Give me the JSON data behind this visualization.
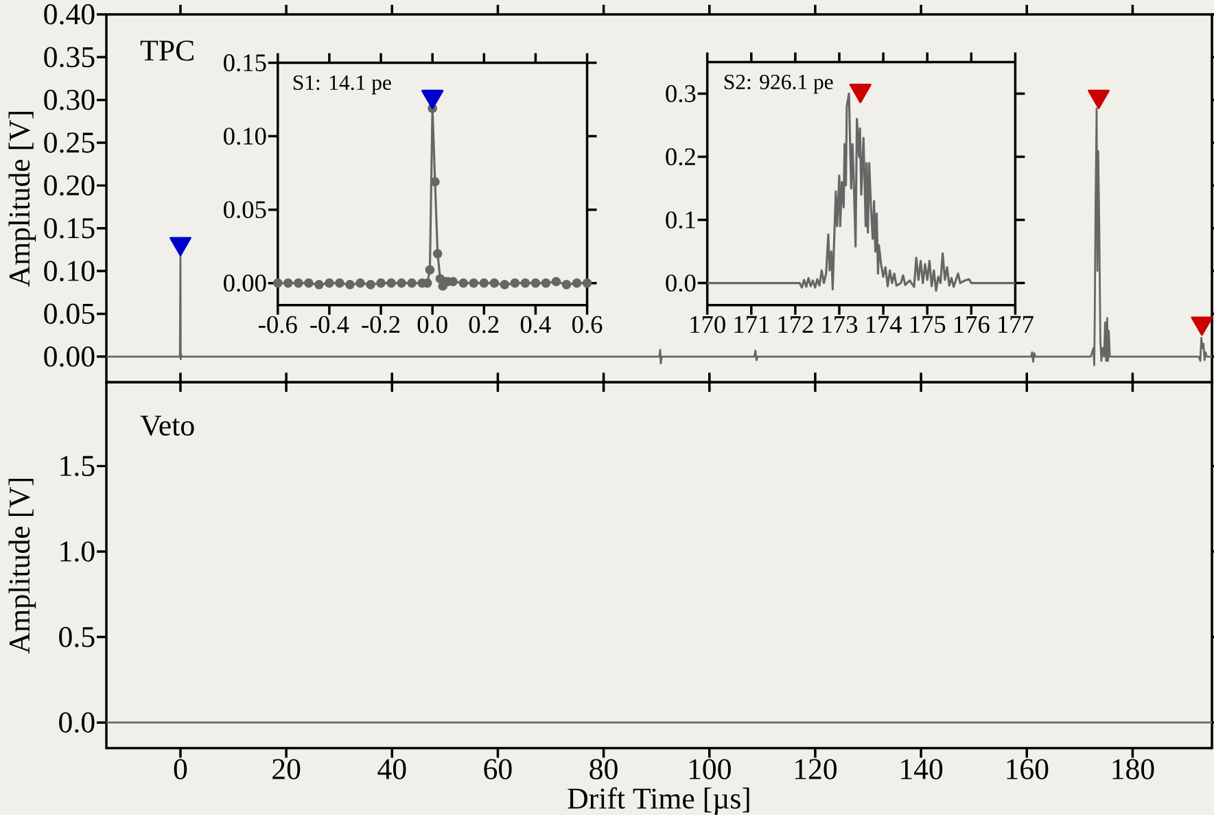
{
  "chart_data": [
    {
      "type": "line",
      "ylabel": "Amplitude [V]",
      "annotations": [
        "TPC"
      ],
      "xlim": [
        -14,
        195
      ],
      "ylim": [
        -0.03,
        0.4
      ],
      "xticks": [
        0,
        20,
        40,
        60,
        80,
        100,
        120,
        140,
        160,
        180
      ],
      "yticks": [
        {
          "value": 0,
          "label": "0.00"
        },
        {
          "value": 0.05,
          "label": "0.05"
        },
        {
          "value": 0.1,
          "label": "0.10"
        },
        {
          "value": 0.15,
          "label": "0.15"
        },
        {
          "value": 0.2,
          "label": "0.20"
        },
        {
          "value": 0.25,
          "label": "0.25"
        },
        {
          "value": 0.3,
          "label": "0.30"
        },
        {
          "value": 0.35,
          "label": "0.35"
        },
        {
          "value": 0.4,
          "label": "0.40"
        }
      ],
      "tick_labels": "y",
      "series": [
        {
          "color": "#666666",
          "x": [
            -14,
            -0.1,
            0,
            0.05,
            0.1,
            0.2,
            90.5,
            90.7,
            90.8,
            91.0,
            108.5,
            108.7,
            108.9,
            109.1,
            160.8,
            161,
            161.2,
            161.4,
            161.6,
            172.1,
            172.6,
            172.75,
            172.85,
            173.0,
            173.2,
            173.35,
            173.5,
            173.7,
            173.9,
            174.1,
            174.3,
            174.6,
            174.8,
            175.0,
            175.2,
            175.35,
            175.5,
            175.7,
            176,
            192.5,
            192.8,
            193.0,
            193.2,
            193.4,
            193.6,
            193.8,
            194,
            195
          ],
          "values": [
            0,
            0,
            0.119,
            -0.003,
            0.003,
            0,
            0,
            0.008,
            -0.008,
            0,
            0,
            0.007,
            -0.004,
            0,
            0,
            0.005,
            -0.006,
            0.004,
            0,
            0,
            0.01,
            -0.01,
            0.05,
            0.18,
            0.29,
            0.1,
            0.24,
            0.15,
            0.02,
            -0.005,
            0.01,
            0,
            0.04,
            -0.005,
            0.045,
            -0.005,
            0.03,
            0,
            0,
            0,
            -0.005,
            0.022,
            0.01,
            0.015,
            -0.004,
            0.005,
            0,
            0
          ]
        },
        {
          "type": "scatter",
          "marker": "triangle",
          "color": "#0000cc",
          "x": [
            0
          ],
          "values": [
            0.132
          ]
        },
        {
          "type": "scatter",
          "marker": "triangle",
          "color": "#cc0000",
          "x": [
            173.6,
            193.1
          ],
          "values": [
            0.304,
            0.039
          ]
        }
      ]
    },
    {
      "type": "line",
      "xlabel": "Drift Time [µs]",
      "ylabel": "Amplitude [V]",
      "annotations": [
        "Veto"
      ],
      "xlim": [
        -14,
        195
      ],
      "ylim": [
        -0.15,
        1.99
      ],
      "xticks": [
        0,
        20,
        40,
        60,
        80,
        100,
        120,
        140,
        160,
        180
      ],
      "yticks": [
        {
          "value": 0,
          "label": "0.0"
        },
        {
          "value": 0.5,
          "label": "0.5"
        },
        {
          "value": 1,
          "label": "1.0"
        },
        {
          "value": 1.5,
          "label": "1.5"
        }
      ],
      "series": [
        {
          "color": "#666666",
          "x": [
            -14,
            195
          ],
          "values": [
            0,
            0
          ]
        }
      ]
    },
    {
      "type": "line",
      "annotations": [
        "S1: 14.1 pe"
      ],
      "xlim": [
        -0.6,
        0.6
      ],
      "ylim": [
        -0.015,
        0.15
      ],
      "xticks": [
        -0.6,
        -0.4,
        -0.2,
        {
          "value": 0,
          "label": "0.0"
        },
        0.2,
        0.4,
        0.6
      ],
      "yticks": [
        {
          "value": 0,
          "label": "0.00"
        },
        {
          "value": 0.05,
          "label": "0.05"
        },
        {
          "value": 0.1,
          "label": "0.10"
        },
        {
          "value": 0.15,
          "label": "0.15"
        }
      ],
      "series": [
        {
          "color": "#666666",
          "marker": "circle",
          "x": [
            -0.6,
            -0.56,
            -0.52,
            -0.48,
            -0.44,
            -0.4,
            -0.36,
            -0.32,
            -0.28,
            -0.24,
            -0.2,
            -0.16,
            -0.12,
            -0.08,
            -0.04,
            -0.02,
            -0.01,
            0,
            0.01,
            0.02,
            0.03,
            0.04,
            0.05,
            0.06,
            0.08,
            0.12,
            0.16,
            0.2,
            0.24,
            0.28,
            0.32,
            0.36,
            0.4,
            0.44,
            0.48,
            0.52,
            0.56,
            0.6
          ],
          "values": [
            0,
            0,
            0,
            0,
            -0.001,
            0,
            0,
            -0.001,
            0,
            -0.001,
            0,
            0,
            0,
            0,
            0,
            0,
            0.009,
            0.119,
            0.069,
            0.02,
            0.003,
            -0.002,
            0.001,
            0.001,
            0.001,
            0,
            0,
            0,
            0,
            -0.001,
            0,
            0,
            0,
            0,
            0.001,
            -0.001,
            0,
            0
          ]
        },
        {
          "type": "scatter",
          "marker": "triangle",
          "color": "#0000cc",
          "x": [
            0
          ],
          "values": [
            0.127
          ]
        }
      ]
    },
    {
      "type": "line",
      "annotations": [
        "S2: 926.1 pe"
      ],
      "xlim": [
        170,
        177
      ],
      "ylim": [
        -0.035,
        0.35
      ],
      "xticks": [
        170,
        171,
        172,
        173,
        174,
        175,
        176,
        177
      ],
      "yticks": [
        {
          "value": 0,
          "label": "0.0"
        },
        {
          "value": 0.1,
          "label": "0.1"
        },
        {
          "value": 0.2,
          "label": "0.2"
        },
        {
          "value": 0.3,
          "label": "0.3"
        }
      ],
      "series": [
        {
          "color": "#666666",
          "x": [
            170,
            172.1,
            172.15,
            172.2,
            172.25,
            172.3,
            172.35,
            172.4,
            172.45,
            172.5,
            172.55,
            172.6,
            172.65,
            172.7,
            172.75,
            172.78,
            172.82,
            172.85,
            172.88,
            172.92,
            172.95,
            173.0,
            173.02,
            173.06,
            173.1,
            173.12,
            173.15,
            173.17,
            173.22,
            173.27,
            173.3,
            173.33,
            173.37,
            173.4,
            173.45,
            173.47,
            173.5,
            173.55,
            173.6,
            173.62,
            173.65,
            173.68,
            173.72,
            173.76,
            173.79,
            173.82,
            173.85,
            173.88,
            173.9,
            173.95,
            174.0,
            174.05,
            174.1,
            174.15,
            174.2,
            174.25,
            174.3,
            174.4,
            174.45,
            174.5,
            174.6,
            174.7,
            174.75,
            174.8,
            174.85,
            174.9,
            174.95,
            175.0,
            175.05,
            175.1,
            175.15,
            175.2,
            175.25,
            175.3,
            175.35,
            175.4,
            175.45,
            175.5,
            175.55,
            175.6,
            175.7,
            175.75,
            175.85,
            175.95,
            176.0,
            176.1,
            177
          ],
          "values": [
            0,
            0,
            -0.007,
            0.005,
            -0.006,
            0.008,
            -0.005,
            0.004,
            -0.007,
            0.006,
            -0.004,
            0.02,
            0,
            0.015,
            0.077,
            0.02,
            0.05,
            -0.01,
            0.06,
            0.145,
            0.09,
            0.17,
            0.09,
            0.16,
            0.12,
            0.22,
            0.155,
            0.28,
            0.3,
            0.15,
            0.22,
            0.16,
            0.058,
            0.26,
            0.2,
            0.245,
            0.14,
            0.23,
            0.09,
            0.19,
            0.08,
            0.19,
            0.12,
            0.07,
            0.13,
            0.05,
            0.11,
            0.015,
            0.06,
            0.03,
            0.01,
            0.025,
            -0.005,
            0.02,
            0,
            0.015,
            -0.004,
            0,
            0.012,
            -0.003,
            0.004,
            -0.006,
            0.04,
            0.005,
            0.035,
            0,
            0.03,
            0.005,
            0.035,
            -0.005,
            0.02,
            -0.012,
            0.01,
            0,
            0.047,
            0.005,
            0.025,
            -0.004,
            0.008,
            -0.006,
            0.015,
            0,
            0.004,
            0.006,
            0,
            0,
            0
          ]
        },
        {
          "type": "scatter",
          "marker": "triangle",
          "color": "#cc0000",
          "x": [
            173.48
          ],
          "values": [
            0.305
          ]
        }
      ]
    }
  ]
}
